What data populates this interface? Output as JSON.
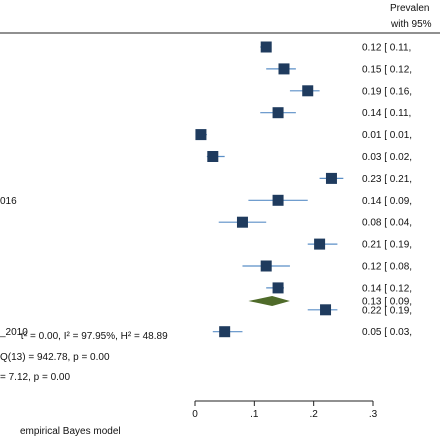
{
  "chart_data": {
    "type": "forest",
    "header": {
      "line1": "Prevalen",
      "line2": "with 95%"
    },
    "study_labels_visible": [
      "",
      "",
      "",
      "",
      "",
      "",
      "",
      "016",
      "",
      "",
      "",
      "",
      "",
      "_2010"
    ],
    "studies": [
      {
        "estimate": 0.12,
        "ci_low": 0.11,
        "ci_high": 0.12,
        "label_text": "0.12 [  0.11,"
      },
      {
        "estimate": 0.15,
        "ci_low": 0.12,
        "ci_high": 0.17,
        "label_text": "0.15 [  0.12,"
      },
      {
        "estimate": 0.19,
        "ci_low": 0.16,
        "ci_high": 0.21,
        "label_text": "0.19 [  0.16,"
      },
      {
        "estimate": 0.14,
        "ci_low": 0.11,
        "ci_high": 0.17,
        "label_text": "0.14 [  0.11,"
      },
      {
        "estimate": 0.01,
        "ci_low": 0.01,
        "ci_high": 0.02,
        "label_text": "0.01 [  0.01,"
      },
      {
        "estimate": 0.03,
        "ci_low": 0.02,
        "ci_high": 0.05,
        "label_text": "0.03 [  0.02,"
      },
      {
        "estimate": 0.23,
        "ci_low": 0.21,
        "ci_high": 0.25,
        "label_text": "0.23 [  0.21,"
      },
      {
        "estimate": 0.14,
        "ci_low": 0.09,
        "ci_high": 0.19,
        "label_text": "0.14 [  0.09,"
      },
      {
        "estimate": 0.08,
        "ci_low": 0.04,
        "ci_high": 0.12,
        "label_text": "0.08 [  0.04,"
      },
      {
        "estimate": 0.21,
        "ci_low": 0.19,
        "ci_high": 0.24,
        "label_text": "0.21 [  0.19,"
      },
      {
        "estimate": 0.12,
        "ci_low": 0.08,
        "ci_high": 0.16,
        "label_text": "0.12 [  0.08,"
      },
      {
        "estimate": 0.14,
        "ci_low": 0.12,
        "ci_high": 0.15,
        "label_text": "0.14 [  0.12,"
      },
      {
        "estimate": 0.22,
        "ci_low": 0.19,
        "ci_high": 0.24,
        "label_text": "0.22 [  0.19,"
      },
      {
        "estimate": 0.05,
        "ci_low": 0.03,
        "ci_high": 0.08,
        "label_text": "0.05 [  0.03,"
      }
    ],
    "overall": {
      "estimate": 0.13,
      "ci_low": 0.09,
      "ci_high": 0.16,
      "label_text": "0.13 [  0.09,"
    },
    "heterogeneity_lines": [
      "τ² = 0.00, I² = 97.95%, H² = 48.89",
      "Q(13) = 942.78, p = 0.00",
      "= 7.12, p = 0.00"
    ],
    "x_axis": {
      "ticks": [
        0,
        0.1,
        0.2,
        0.3
      ],
      "tick_labels": [
        "0",
        ".1",
        ".2",
        ".3"
      ],
      "range": [
        0,
        0.3
      ]
    },
    "footnote": "empirical Bayes model",
    "colors": {
      "marker": "#1f3b5e",
      "ci_line": "#5b8fc7",
      "diamond": "#4f6b2a",
      "axis": "#222222"
    }
  }
}
